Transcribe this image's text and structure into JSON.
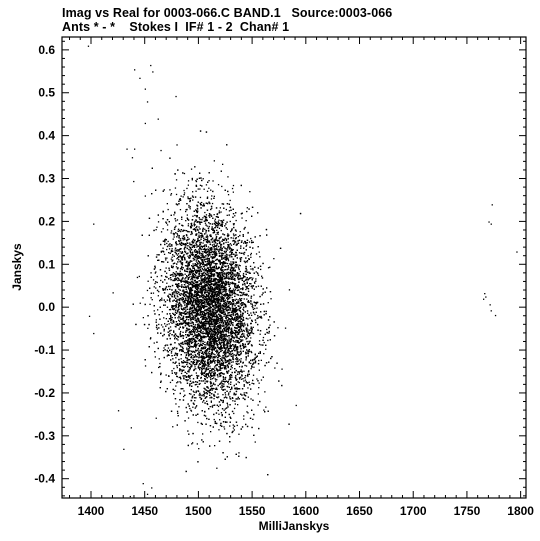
{
  "chart_data": {
    "type": "scatter",
    "title": "Imag vs Real for 0003-066.C BAND.1   Source:0003-066",
    "subtitle": "Ants * - *    Stokes I  IF# 1 - 2  Chan# 1",
    "xlabel": "MilliJanskys",
    "ylabel": "Janskys",
    "xlim": [
      1373,
      1805
    ],
    "ylim": [
      -0.445,
      0.63
    ],
    "xticks": [
      1400,
      1450,
      1500,
      1550,
      1600,
      1650,
      1700,
      1750,
      1800
    ],
    "xtick_labels": [
      "1400",
      "1450",
      "1500",
      "1550",
      "1600",
      "1650",
      "1700",
      "1750",
      "1800"
    ],
    "yticks": [
      -0.4,
      -0.3,
      -0.2,
      -0.1,
      0.0,
      0.1,
      0.2,
      0.3,
      0.4,
      0.5,
      0.6
    ],
    "ytick_labels": [
      "-0.4",
      "-0.3",
      "-0.2",
      "-0.1",
      "0.0",
      "0.1",
      "0.2",
      "0.3",
      "0.4",
      "0.5",
      "0.6"
    ],
    "grid": false,
    "point_color": "#000000",
    "cluster": {
      "center": [
        1510,
        0.0
      ],
      "x_std": 21,
      "y_std": 0.115,
      "count": 9000
    },
    "points": [
      [
        1397,
        0.61
      ],
      [
        1402,
        0.195
      ],
      [
        1398,
        -0.02
      ],
      [
        1402,
        -0.06
      ],
      [
        1420,
        0.035
      ],
      [
        1425,
        -0.24
      ],
      [
        1430,
        -0.33
      ],
      [
        1436,
        -0.44
      ],
      [
        1437,
        -0.28
      ],
      [
        1440,
        0.555
      ],
      [
        1445,
        0.535
      ],
      [
        1450,
        0.51
      ],
      [
        1452,
        0.48
      ],
      [
        1455,
        0.565
      ],
      [
        1457,
        0.55
      ],
      [
        1462,
        0.44
      ],
      [
        1450,
        0.43
      ],
      [
        1448,
        -0.41
      ],
      [
        1452,
        -0.435
      ],
      [
        1456,
        -0.42
      ],
      [
        1433,
        0.37
      ],
      [
        1438,
        0.35
      ],
      [
        1440,
        0.37
      ],
      [
        1770,
        0.2
      ],
      [
        1772,
        0.195
      ],
      [
        1773,
        0.24
      ],
      [
        1776,
        -0.018
      ],
      [
        1766,
        0.033
      ],
      [
        1765,
        0.02
      ],
      [
        1767,
        0.025
      ],
      [
        1771,
        0.007
      ],
      [
        1772,
        -0.007
      ],
      [
        1796,
        0.13
      ]
    ]
  }
}
